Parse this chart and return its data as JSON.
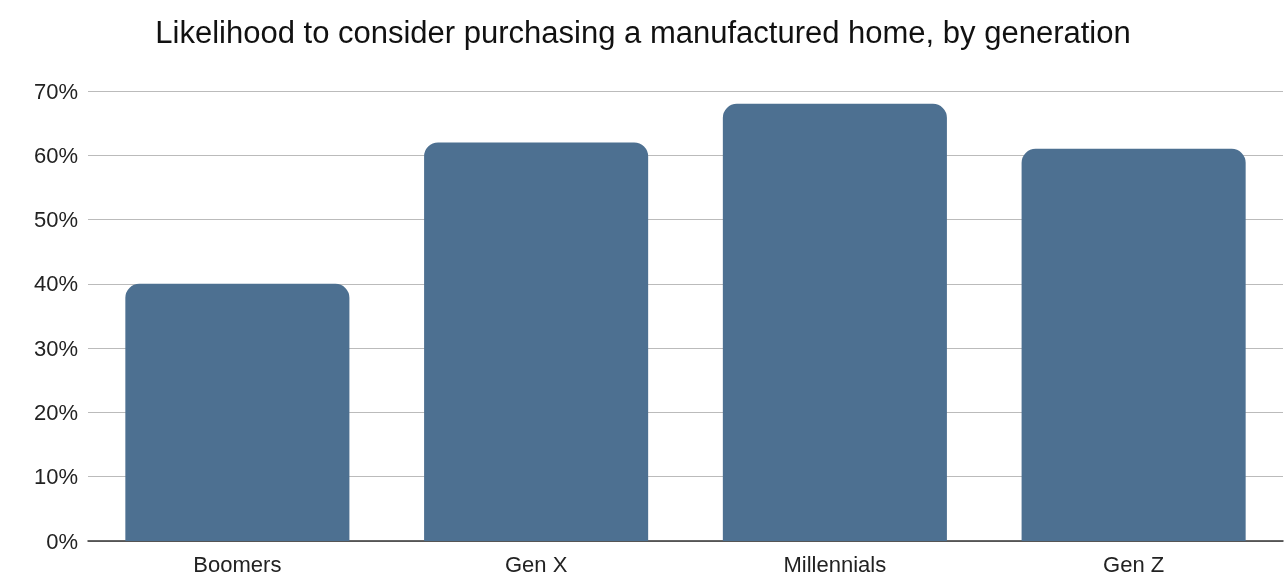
{
  "chart_data": {
    "type": "bar",
    "title": "Likelihood to consider purchasing a manufactured home, by generation",
    "categories": [
      "Boomers",
      "Gen X",
      "Millennials",
      "Gen Z"
    ],
    "values": [
      40,
      62,
      68,
      61
    ],
    "color": "#4d7091",
    "ylim": [
      0,
      70
    ],
    "yticks": [
      {
        "value": 0,
        "label": "0%"
      },
      {
        "value": 10,
        "label": "10%"
      },
      {
        "value": 20,
        "label": "20%"
      },
      {
        "value": 30,
        "label": "30%"
      },
      {
        "value": 40,
        "label": "40%"
      },
      {
        "value": 50,
        "label": "50%"
      },
      {
        "value": 60,
        "label": "60%"
      },
      {
        "value": 70,
        "label": "70%"
      }
    ],
    "grid": "y"
  }
}
